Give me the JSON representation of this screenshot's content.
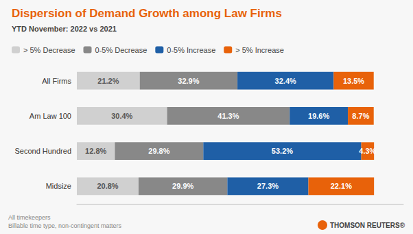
{
  "chart_data": {
    "type": "bar",
    "orientation": "horizontal",
    "stacked": true,
    "title": "Dispersion of Demand Growth among Law Firms",
    "subtitle": "YTD November: 2022 vs 2021",
    "annotations": [
      "All timekeepers",
      "Billable time type, non-contingent matters",
      "THOMSON REUTERS®"
    ],
    "categories": [
      "All Firms",
      "Am Law 100",
      "Second Hundred",
      "Midsize"
    ],
    "series": [
      {
        "name": "> 5% Decrease",
        "color": "#d0d0d0",
        "values": [
          21.2,
          30.4,
          12.8,
          20.8
        ],
        "value_labels": [
          "21.2%",
          "30.4%",
          "12.8%",
          "20.8%"
        ]
      },
      {
        "name": "0-5% Decrease",
        "color": "#888888",
        "values": [
          32.9,
          41.3,
          29.8,
          29.9
        ],
        "value_labels": [
          "32.9%",
          "41.3%",
          "29.8%",
          "29.9%"
        ]
      },
      {
        "name": "0-5% Increase",
        "color": "#1f5fa6",
        "values": [
          32.4,
          19.6,
          53.2,
          27.3
        ],
        "value_labels": [
          "32.4%",
          "19.6%",
          "53.2%",
          "27.3%"
        ]
      },
      {
        "name": "> 5% Increase",
        "color": "#e8620a",
        "values": [
          13.5,
          8.7,
          4.3,
          22.1
        ],
        "value_labels": [
          "13.5%",
          "8.7%",
          "4.3%",
          "22.1%"
        ]
      }
    ],
    "xlim": [
      0,
      110
    ],
    "xticks": [],
    "data_labels": true,
    "tick_labels": "y",
    "grid": false,
    "legend": "upper left"
  }
}
